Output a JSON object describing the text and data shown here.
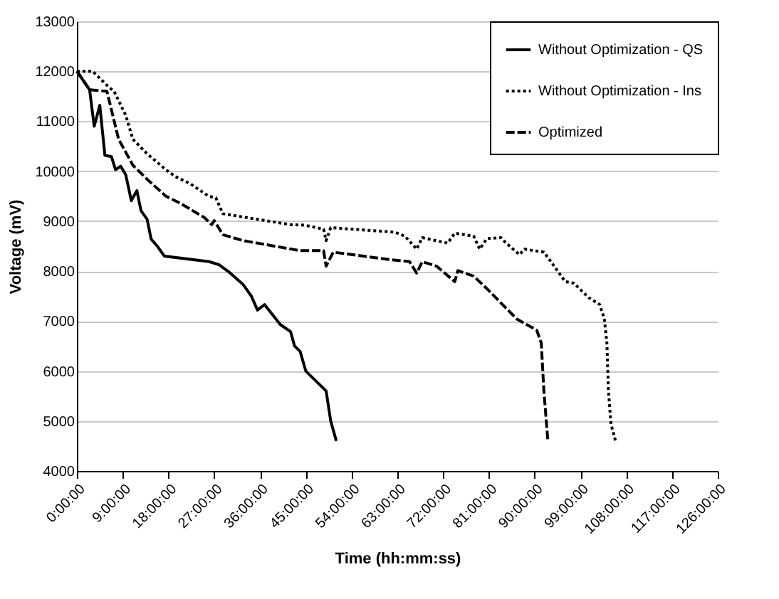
{
  "chart_data": {
    "type": "line",
    "xlabel": "Time (hh:mm:ss)",
    "ylabel": "Voltage (mV)",
    "xlim": [
      0,
      126
    ],
    "ylim": [
      4000,
      13000
    ],
    "xticks": [
      {
        "value": 0,
        "label": "0:00:00"
      },
      {
        "value": 9,
        "label": "9:00:00"
      },
      {
        "value": 18,
        "label": "18:00:00"
      },
      {
        "value": 27,
        "label": "27:00:00"
      },
      {
        "value": 36,
        "label": "36:00:00"
      },
      {
        "value": 45,
        "label": "45:00:00"
      },
      {
        "value": 54,
        "label": "54:00:00"
      },
      {
        "value": 63,
        "label": "63:00:00"
      },
      {
        "value": 72,
        "label": "72:00:00"
      },
      {
        "value": 81,
        "label": "81:00:00"
      },
      {
        "value": 90,
        "label": "90:00:00"
      },
      {
        "value": 99,
        "label": "99:00:00"
      },
      {
        "value": 108,
        "label": "108:00:00"
      },
      {
        "value": 117,
        "label": "117:00:00"
      },
      {
        "value": 126,
        "label": "126:00:00"
      }
    ],
    "yticks": [
      4000,
      5000,
      6000,
      7000,
      8000,
      9000,
      10000,
      11000,
      12000,
      13000
    ],
    "grid": "y",
    "legend": "top right",
    "marker": "none",
    "series": [
      {
        "name": "Without Optimization - QS",
        "color": "#000000",
        "line_style": "solid",
        "x": [
          0,
          2.5,
          3.4,
          4.5,
          5.5,
          6.8,
          7.6,
          8.6,
          9.6,
          10.7,
          11.8,
          12.6,
          13.8,
          14.6,
          15.8,
          17.2,
          26,
          27.9,
          29.8,
          32.7,
          34.3,
          35.5,
          36.9,
          40,
          42,
          42.8,
          43.9,
          45,
          49,
          49.9,
          51
        ],
        "values": [
          12000,
          11630,
          10900,
          11320,
          10320,
          10290,
          10030,
          10100,
          9930,
          9410,
          9610,
          9210,
          9040,
          8640,
          8500,
          8300,
          8190,
          8130,
          7990,
          7730,
          7500,
          7220,
          7330,
          6930,
          6790,
          6500,
          6390,
          6000,
          5600,
          5000,
          4600
        ]
      },
      {
        "name": "Without Optimization - Ins",
        "color": "#000000",
        "line_style": "dotted",
        "x": [
          0,
          3.1,
          6.2,
          7.3,
          9.6,
          11,
          13.8,
          17.5,
          19.4,
          22.3,
          25.9,
          27.3,
          28.7,
          33.5,
          37.2,
          42,
          44.8,
          48.5,
          49,
          49.9,
          62.5,
          64.5,
          66.8,
          67.9,
          72.9,
          74.3,
          78,
          79.2,
          80.6,
          83.4,
          84.2,
          87,
          88,
          91.8,
          93.2,
          96,
          97.7,
          100.6,
          102.8,
          103.7,
          104.2,
          104.5,
          105,
          105.9
        ],
        "values": [
          12000,
          12000,
          11690,
          11600,
          11120,
          10640,
          10350,
          10030,
          9890,
          9750,
          9500,
          9470,
          9150,
          9070,
          9010,
          8930,
          8920,
          8840,
          8610,
          8870,
          8780,
          8700,
          8440,
          8670,
          8560,
          8760,
          8700,
          8440,
          8650,
          8670,
          8580,
          8330,
          8440,
          8380,
          8190,
          7790,
          7760,
          7470,
          7330,
          7040,
          6560,
          5620,
          4940,
          4600
        ]
      },
      {
        "name": "Optimized",
        "color": "#000000",
        "line_style": "dashed",
        "x": [
          0,
          2.5,
          5.9,
          8.2,
          11,
          13.8,
          17.5,
          20.3,
          25.1,
          26.5,
          27,
          28.7,
          32.7,
          37.2,
          43.9,
          48.5,
          49,
          50.4,
          60.8,
          65.4,
          66.8,
          67.9,
          70.7,
          74.3,
          74.9,
          78,
          80.6,
          86.5,
          90.4,
          91.3,
          91.8,
          92.6
        ],
        "values": [
          12000,
          11630,
          11600,
          10640,
          10120,
          9840,
          9500,
          9360,
          9070,
          8930,
          9010,
          8730,
          8610,
          8530,
          8410,
          8410,
          8100,
          8380,
          8240,
          8190,
          7960,
          8190,
          8100,
          7790,
          8010,
          7900,
          7650,
          7040,
          6820,
          6560,
          5620,
          4600
        ]
      }
    ]
  }
}
